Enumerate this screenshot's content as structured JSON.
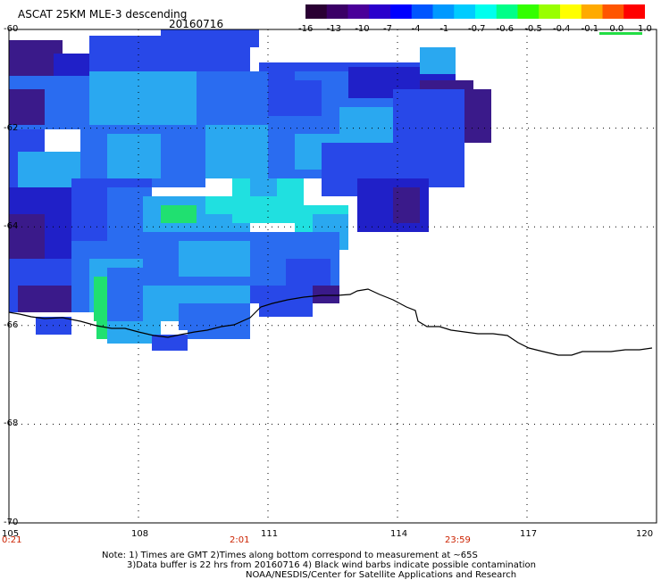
{
  "header": {
    "title": "ASCAT 25KM MLE-3 descending",
    "date": "20160716"
  },
  "colorbar": {
    "labels": [
      "-16",
      "-13",
      "-10",
      "-7",
      "-4",
      "-1",
      "-0.7",
      "-0.6",
      "-0.5",
      "-0.4",
      "-0.1",
      "0.0",
      "1.0"
    ],
    "colors": [
      "#2a0033",
      "#3b0066",
      "#4a0099",
      "#2a00cc",
      "#0000ff",
      "#0055ff",
      "#0099ff",
      "#00ccff",
      "#00ffee",
      "#00ff88",
      "#33ff00",
      "#99ff00",
      "#ffff00",
      "#ffaa00",
      "#ff5500",
      "#ff0000"
    ]
  },
  "map": {
    "lat_labels": [
      "-60",
      "-62",
      "-64",
      "-66",
      "-68",
      "-70"
    ],
    "lon_labels": [
      "105",
      "108",
      "111",
      "114",
      "117",
      "120"
    ],
    "lat_range": [
      -70,
      -60
    ],
    "lon_range": [
      105,
      120
    ],
    "times": [
      "0:21",
      "2:01",
      "23:59"
    ],
    "colors": {
      "deep": "#3a1a8a",
      "dark_blue": "#2020c8",
      "blue": "#2848e8",
      "mid_blue": "#2a6cf0",
      "light_blue": "#2aa8f0",
      "cyan": "#20e0e0",
      "green": "#20e070",
      "coast": "#000000",
      "grid": "#000000"
    }
  },
  "notes": {
    "line1": "Note: 1) Times are GMT 2)Times along bottom correspond to measurement at ~65S",
    "line2": "3)Data buffer is 22 hrs from 20160716 4) Black wind barbs indicate possible contamination",
    "line3": "NOAA/NESDIS/Center for Satellite Applications and Research"
  }
}
